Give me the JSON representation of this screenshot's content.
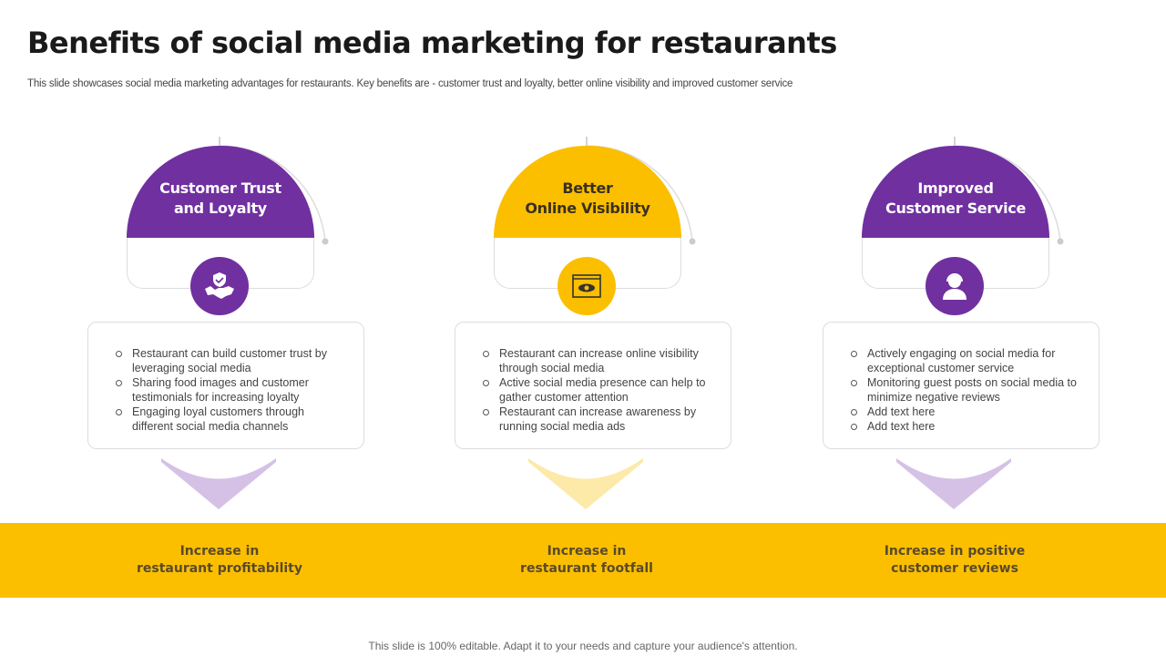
{
  "title": "Benefits of social media marketing for restaurants",
  "subtitle": "This slide showcases social media marketing advantages for restaurants. Key benefits are - customer trust and loyalty,  better online visibility and improved customer service",
  "colors": {
    "purple": "#7030a0",
    "yellow": "#fbbf00",
    "light_purple": "#d5c1e6",
    "light_yellow": "#fde9a8"
  },
  "columns": [
    {
      "heading1": "Customer Trust",
      "heading2": "and Loyalty",
      "icon": "handshake-shield-icon",
      "bullets": [
        "Restaurant can build customer trust by leveraging  social media",
        "Sharing food images and customer testimonials for increasing loyalty",
        "Engaging loyal customers through different  social media channels"
      ],
      "outcome1": "Increase in",
      "outcome2": "restaurant profitability"
    },
    {
      "heading1": "Better",
      "heading2": "Online Visibility",
      "icon": "eye-browser-icon",
      "bullets": [
        "Restaurant can increase online visibility through social media",
        "Active social media presence can help to gather customer attention",
        "Restaurant can increase awareness by running social media ads"
      ],
      "outcome1": "Increase in",
      "outcome2": "restaurant footfall"
    },
    {
      "heading1": "Improved",
      "heading2": "Customer Service",
      "icon": "customer-support-icon",
      "bullets": [
        "Actively engaging on social media for exceptional customer service",
        "Monitoring guest posts on social media to minimize negative reviews",
        "Add text here",
        "Add text here"
      ],
      "outcome1": "Increase in positive",
      "outcome2": "customer reviews"
    }
  ],
  "footer": "This slide is 100% editable. Adapt it to your needs and capture your audience's attention."
}
